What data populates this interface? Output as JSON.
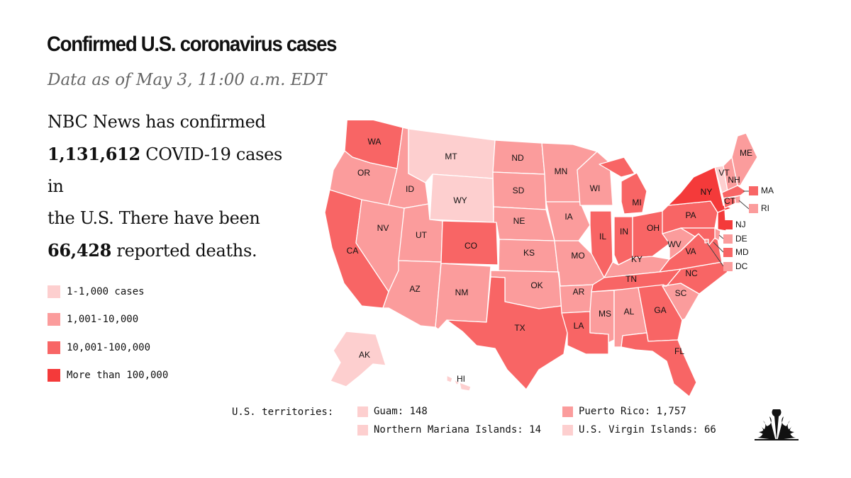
{
  "header": {
    "title": "Confirmed U.S. coronavirus cases",
    "subtitle": "Data as of May 3, 11:00 a.m. EDT"
  },
  "summary": {
    "line1": "NBC News has confirmed",
    "cases": "1,131,612",
    "line2_rest": " COVID-19 cases in",
    "line3": "the U.S. There have been",
    "deaths": "66,428",
    "line4_rest": " reported deaths."
  },
  "colors": {
    "tier1": "#fdcfcf",
    "tier2": "#fb9c9c",
    "tier3": "#f86565",
    "tier4": "#f43a3a"
  },
  "legend": [
    {
      "label": "1-1,000 cases",
      "tier": "tier1"
    },
    {
      "label": "1,001-10,000",
      "tier": "tier2"
    },
    {
      "label": "10,001-100,000",
      "tier": "tier3"
    },
    {
      "label": "More than 100,000",
      "tier": "tier4"
    }
  ],
  "states": [
    {
      "abbr": "WA",
      "tier": "tier3"
    },
    {
      "abbr": "OR",
      "tier": "tier2"
    },
    {
      "abbr": "CA",
      "tier": "tier3"
    },
    {
      "abbr": "ID",
      "tier": "tier2"
    },
    {
      "abbr": "NV",
      "tier": "tier2"
    },
    {
      "abbr": "MT",
      "tier": "tier1"
    },
    {
      "abbr": "WY",
      "tier": "tier1"
    },
    {
      "abbr": "UT",
      "tier": "tier2"
    },
    {
      "abbr": "AZ",
      "tier": "tier2"
    },
    {
      "abbr": "CO",
      "tier": "tier3"
    },
    {
      "abbr": "NM",
      "tier": "tier2"
    },
    {
      "abbr": "ND",
      "tier": "tier2"
    },
    {
      "abbr": "SD",
      "tier": "tier2"
    },
    {
      "abbr": "NE",
      "tier": "tier2"
    },
    {
      "abbr": "KS",
      "tier": "tier2"
    },
    {
      "abbr": "OK",
      "tier": "tier2"
    },
    {
      "abbr": "TX",
      "tier": "tier3"
    },
    {
      "abbr": "MN",
      "tier": "tier2"
    },
    {
      "abbr": "IA",
      "tier": "tier2"
    },
    {
      "abbr": "MO",
      "tier": "tier2"
    },
    {
      "abbr": "AR",
      "tier": "tier2"
    },
    {
      "abbr": "LA",
      "tier": "tier3"
    },
    {
      "abbr": "WI",
      "tier": "tier2"
    },
    {
      "abbr": "IL",
      "tier": "tier3"
    },
    {
      "abbr": "MI",
      "tier": "tier3"
    },
    {
      "abbr": "IN",
      "tier": "tier3"
    },
    {
      "abbr": "OH",
      "tier": "tier3"
    },
    {
      "abbr": "KY",
      "tier": "tier2"
    },
    {
      "abbr": "TN",
      "tier": "tier3"
    },
    {
      "abbr": "MS",
      "tier": "tier2"
    },
    {
      "abbr": "AL",
      "tier": "tier2"
    },
    {
      "abbr": "GA",
      "tier": "tier3"
    },
    {
      "abbr": "FL",
      "tier": "tier3"
    },
    {
      "abbr": "SC",
      "tier": "tier2"
    },
    {
      "abbr": "NC",
      "tier": "tier3"
    },
    {
      "abbr": "VA",
      "tier": "tier3"
    },
    {
      "abbr": "WV",
      "tier": "tier2"
    },
    {
      "abbr": "PA",
      "tier": "tier3"
    },
    {
      "abbr": "NY",
      "tier": "tier4"
    },
    {
      "abbr": "VT",
      "tier": "tier1"
    },
    {
      "abbr": "NH",
      "tier": "tier2"
    },
    {
      "abbr": "ME",
      "tier": "tier2"
    },
    {
      "abbr": "MA",
      "tier": "tier3"
    },
    {
      "abbr": "RI",
      "tier": "tier2"
    },
    {
      "abbr": "CT",
      "tier": "tier3"
    },
    {
      "abbr": "NJ",
      "tier": "tier4"
    },
    {
      "abbr": "DE",
      "tier": "tier2"
    },
    {
      "abbr": "MD",
      "tier": "tier3"
    },
    {
      "abbr": "DC",
      "tier": "tier2"
    },
    {
      "abbr": "AK",
      "tier": "tier1"
    },
    {
      "abbr": "HI",
      "tier": "tier1"
    }
  ],
  "territories": {
    "label": "U.S. territories:",
    "items": [
      {
        "name": "Guam: 148",
        "tier": "tier1"
      },
      {
        "name": "Northern Mariana Islands: 14",
        "tier": "tier1"
      },
      {
        "name": "Puerto Rico: 1,757",
        "tier": "tier2"
      },
      {
        "name": "U.S. Virgin Islands: 66",
        "tier": "tier1"
      }
    ]
  },
  "logo": {
    "icon": "nbc-peacock-icon"
  }
}
